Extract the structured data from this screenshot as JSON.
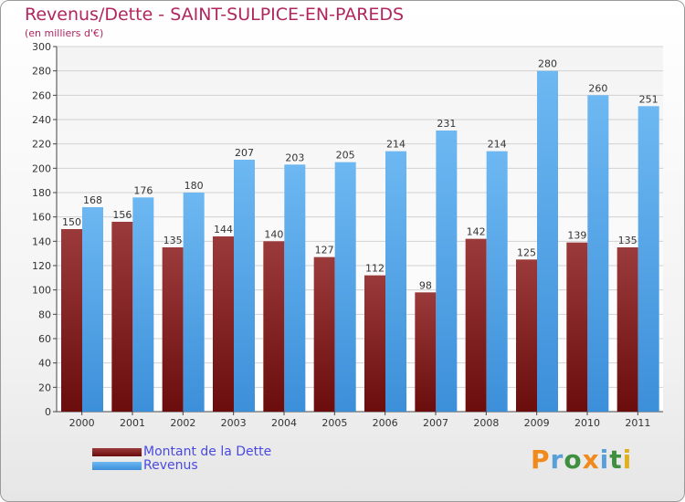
{
  "colors": {
    "dette": "#6b0d0d",
    "dette_top": "#9b3a3a",
    "revenus": "#3c8fd9",
    "revenus_top": "#6db8f2",
    "title": "#b0265d",
    "legend_text": "#4a4adf"
  },
  "logo": {
    "text": "Proxiti",
    "letters": [
      "P",
      "r",
      "o",
      "x",
      "i",
      "t",
      "i"
    ],
    "letter_colors": [
      "#f08a1c",
      "#5aa0d8",
      "#3e8f3e",
      "#f08a1c",
      "#5aa0d8",
      "#3e8f3e",
      "#e0b020"
    ]
  },
  "chart_data": {
    "type": "bar",
    "title": "Revenus/Dette - SAINT-SULPICE-EN-PAREDS",
    "subtitle": "(en milliers d'€)",
    "categories": [
      "2000",
      "2001",
      "2002",
      "2003",
      "2004",
      "2005",
      "2006",
      "2007",
      "2008",
      "2009",
      "2010",
      "2011"
    ],
    "series": [
      {
        "name": "Montant de la Dette",
        "values": [
          150,
          156,
          135,
          144,
          140,
          127,
          112,
          98,
          142,
          125,
          139,
          135
        ]
      },
      {
        "name": "Revenus",
        "values": [
          168,
          176,
          180,
          207,
          203,
          205,
          214,
          231,
          214,
          280,
          260,
          251
        ]
      }
    ],
    "ylim": [
      0,
      300
    ],
    "yticks": [
      0,
      20,
      40,
      60,
      80,
      100,
      120,
      140,
      160,
      180,
      200,
      220,
      240,
      260,
      280,
      300
    ],
    "grid": true,
    "legend_position": "bottom-left"
  }
}
